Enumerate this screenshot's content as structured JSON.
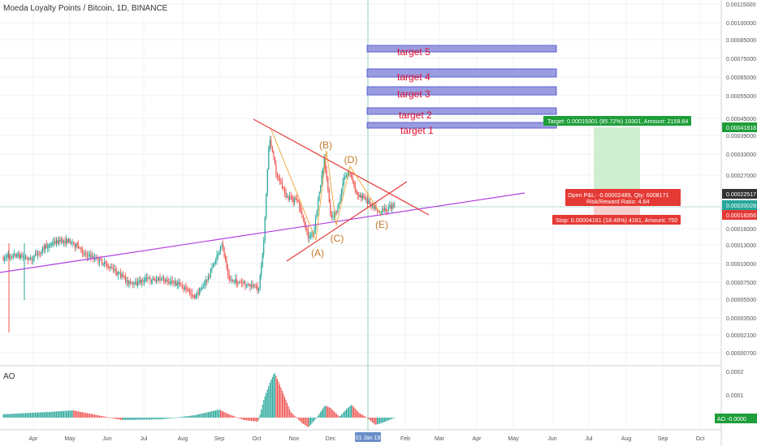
{
  "symbol": {
    "name": "Moeda Loyalty Points / Bitcoin",
    "interval": "1D",
    "exchange": "BINANCE"
  },
  "indicator": {
    "name": "AO",
    "value_badge": "AO  -0.0000",
    "ticks": [
      "0.0002",
      "0.0001",
      "0"
    ]
  },
  "chart_data": {
    "type": "candlestick",
    "xlabel": "",
    "ylabel": "",
    "ylim": [
      0.0,
      0.00115
    ],
    "y_ticks": [
      "0.00115000",
      "0.00100000",
      "0.00085000",
      "0.00075000",
      "0.00065000",
      "0.00055000",
      "0.00045000",
      "0.00039000",
      "0.00033000",
      "0.00027000",
      "0.00016000",
      "0.00013000",
      "0.00010000",
      "0.00007500",
      "0.00005500",
      "0.00003500",
      "0.00002100",
      "0.00000700"
    ],
    "x_ticks": [
      "Apr",
      "May",
      "Jun",
      "Jul",
      "Aug",
      "Sep",
      "Oct",
      "Nov",
      "Dec",
      "01 Jan 19",
      "Feb",
      "Mar",
      "Apr",
      "May",
      "Jun",
      "Jul",
      "Aug",
      "Sep",
      "Oct"
    ],
    "price_badges": [
      {
        "text": "0.00041818",
        "color": "#1e9e3a"
      },
      {
        "text": "0.00022517",
        "color": "#333333"
      },
      {
        "text": "0.00020028",
        "color": "#26a69a"
      },
      {
        "text": "0.00018356",
        "color": "#e53935"
      }
    ],
    "targets": [
      {
        "label": "target 5",
        "price": 0.00081
      },
      {
        "label": "target 4",
        "price": 0.00066
      },
      {
        "label": "target 3",
        "price": 0.00057
      },
      {
        "label": "target 2",
        "price": 0.00047
      },
      {
        "label": "target 1",
        "price": 0.00041
      }
    ],
    "wave_labels": [
      "(A)",
      "(B)",
      "(C)",
      "(D)",
      "(E)"
    ],
    "position": {
      "target_text": "Target: 0.00019301 (85.72%) 19301, Amount: 2159.64",
      "pnl_text": "Open P&L: -0.00002489, Qty: 6008171",
      "rr_text": "Risk/Reward Ratio: 4.64",
      "stop_text": "Stop: 0.00004161 (18.48%) 4161, Amount: 750",
      "entry": 0.0002052,
      "target": 0.00041818,
      "stop": 0.00018356
    },
    "colors": {
      "up": "#26a69a",
      "down": "#ef5350",
      "trend": "#b040e0",
      "triangle": "#e53935",
      "wave": "#f0a030",
      "target_box": "#9a9ce0",
      "target_text": "#e0102c",
      "profit_zone": "#c8ebc8",
      "loss_zone": "#f7c8c8"
    }
  }
}
